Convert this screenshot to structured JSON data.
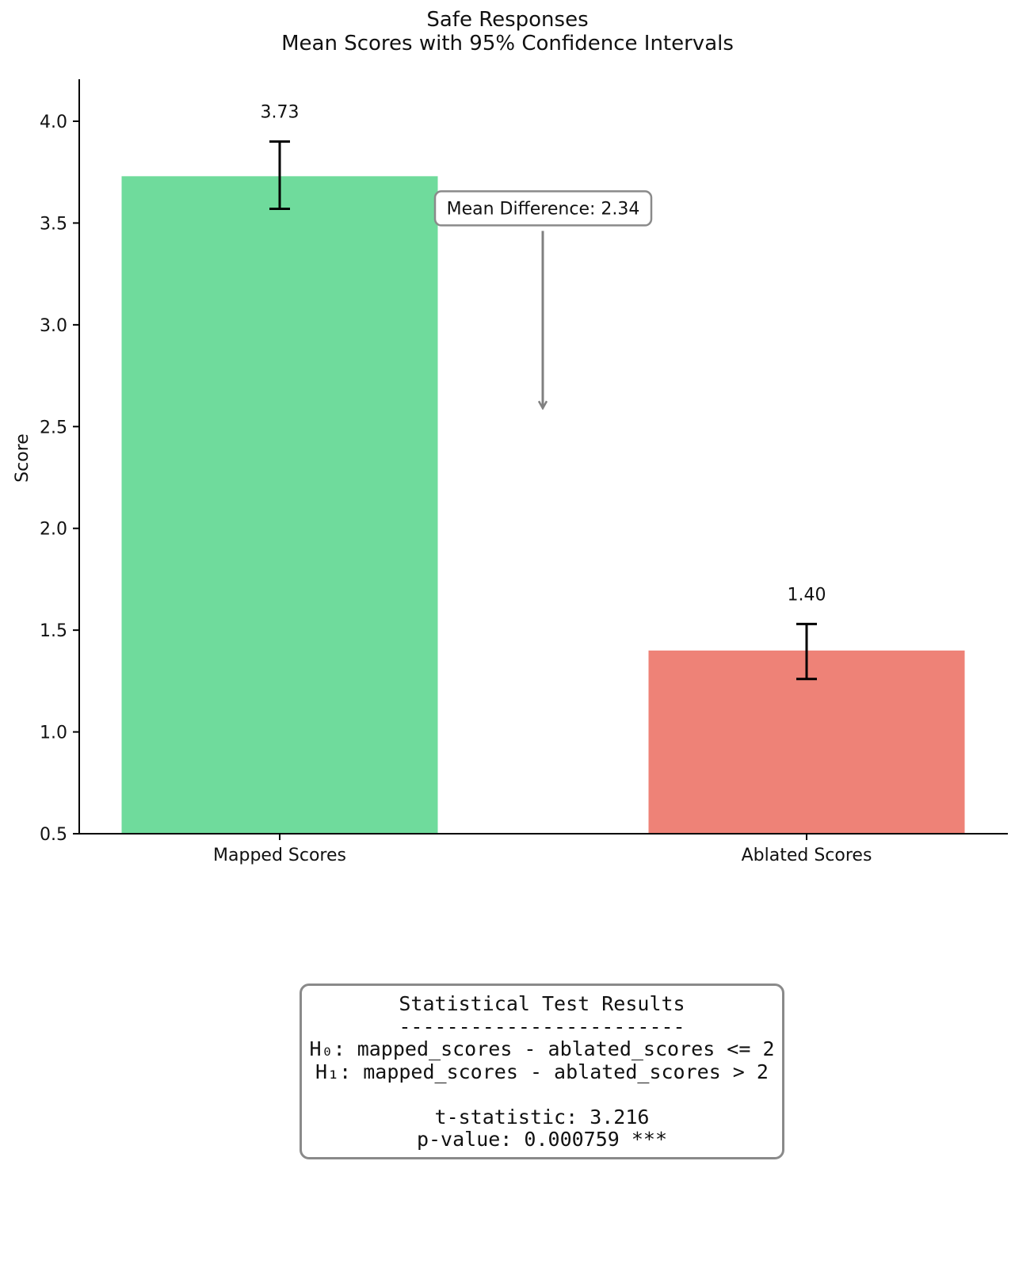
{
  "chart_data": {
    "type": "bar",
    "title": "Safe Responses",
    "subtitle": "Mean Scores with 95% Confidence Intervals",
    "ylabel": "Score",
    "xlabel": "",
    "ylim": [
      0.5,
      4.2
    ],
    "yticks": [
      0.5,
      1.0,
      1.5,
      2.0,
      2.5,
      3.0,
      3.5,
      4.0
    ],
    "categories": [
      "Mapped Scores",
      "Ablated Scores"
    ],
    "values": [
      3.73,
      1.4
    ],
    "value_labels": [
      "3.73",
      "1.40"
    ],
    "ci_lower": [
      3.57,
      1.26
    ],
    "ci_upper": [
      3.9,
      1.53
    ],
    "colors": [
      "#6fdb9c",
      "#ee8277"
    ],
    "grid": false,
    "annotation": {
      "text": "Mean Difference: 2.34",
      "arrow_from_y": 3.5,
      "arrow_to_y": 2.59
    }
  },
  "stats_box": {
    "title": "Statistical Test Results",
    "separator": "------------------------",
    "h0": "H₀: mapped_scores - ablated_scores <= 2",
    "h1": "H₁: mapped_scores - ablated_scores > 2",
    "t_statistic": "t-statistic: 3.216",
    "p_value": "p-value: 0.000759 ***"
  }
}
